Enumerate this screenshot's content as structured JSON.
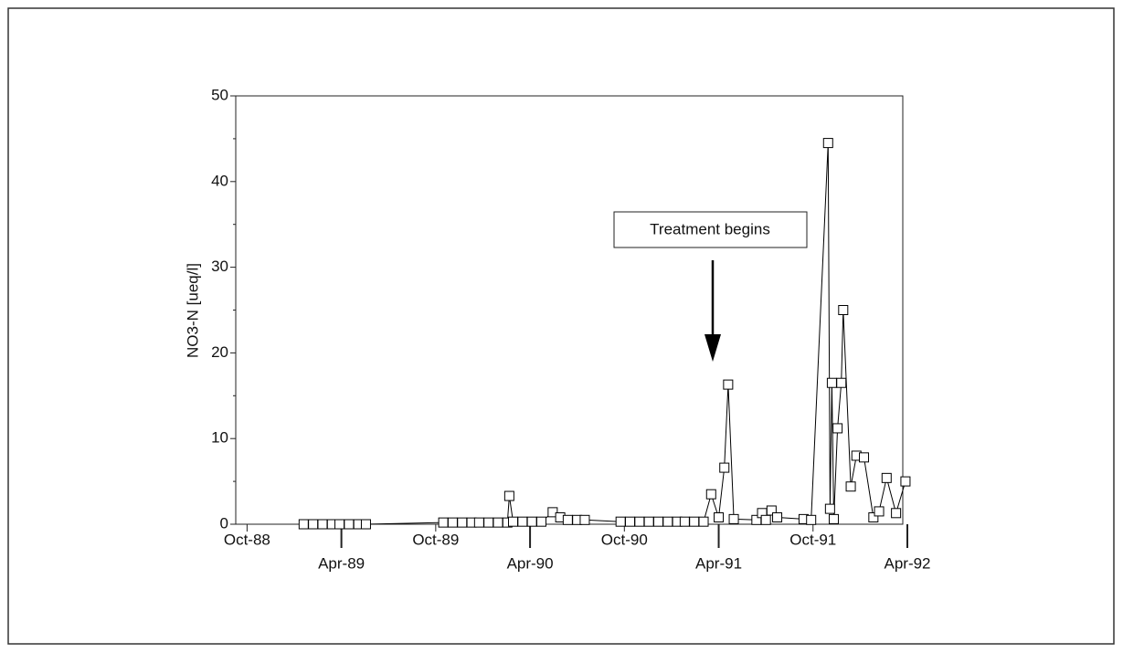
{
  "chart_data": {
    "type": "line",
    "y_label": "NO3-N [ueq/l]",
    "annotation": "Treatment begins",
    "color": "#000000",
    "marker": "square",
    "x": [
      1989.05,
      1989.1,
      1989.15,
      1989.2,
      1989.24,
      1989.29,
      1989.34,
      1989.38,
      1989.79,
      1989.84,
      1989.89,
      1989.94,
      1989.98,
      1990.03,
      1990.08,
      1990.13,
      1990.14,
      1990.16,
      1990.21,
      1990.26,
      1990.31,
      1990.37,
      1990.41,
      1990.45,
      1990.5,
      1990.54,
      1990.73,
      1990.78,
      1990.83,
      1990.88,
      1990.93,
      1990.98,
      1991.03,
      1991.07,
      1991.12,
      1991.17,
      1991.21,
      1991.25,
      1991.28,
      1991.3,
      1991.33,
      1991.45,
      1991.48,
      1991.5,
      1991.53,
      1991.56,
      1991.7,
      1991.74,
      1991.83,
      1991.84,
      1991.85,
      1991.86,
      1991.88,
      1991.9,
      1991.91,
      1991.95,
      1991.98,
      1992.02,
      1992.07,
      1992.1,
      1992.14,
      1992.19,
      1992.24
    ],
    "values": [
      0,
      0,
      0,
      0,
      0,
      0,
      0,
      0,
      0.2,
      0.2,
      0.2,
      0.2,
      0.2,
      0.2,
      0.2,
      0.2,
      3.3,
      0.3,
      0.3,
      0.3,
      0.3,
      1.4,
      0.8,
      0.5,
      0.5,
      0.5,
      0.3,
      0.3,
      0.3,
      0.3,
      0.3,
      0.3,
      0.3,
      0.3,
      0.3,
      0.3,
      3.5,
      0.8,
      6.6,
      16.3,
      0.6,
      0.5,
      1.3,
      0.5,
      1.6,
      0.8,
      0.6,
      0.5,
      44.5,
      1.8,
      16.5,
      0.6,
      11.2,
      16.5,
      25,
      4.4,
      8,
      7.8,
      0.8,
      1.5,
      5.4,
      1.3,
      5
    ],
    "xlim": [
      1988.69,
      1992.25
    ],
    "ylim": [
      0,
      50
    ],
    "yticks": [
      0,
      10,
      20,
      30,
      40,
      50
    ],
    "xticks": [
      {
        "value": 1988.75,
        "label": "Oct-88"
      },
      {
        "value": 1989.25,
        "label": "Apr-89"
      },
      {
        "value": 1989.75,
        "label": "Oct-89"
      },
      {
        "value": 1990.25,
        "label": "Apr-90"
      },
      {
        "value": 1990.75,
        "label": "Oct-90"
      },
      {
        "value": 1991.25,
        "label": "Apr-91"
      },
      {
        "value": 1991.75,
        "label": "Oct-91"
      },
      {
        "value": 1992.25,
        "label": "Apr-92"
      }
    ]
  }
}
